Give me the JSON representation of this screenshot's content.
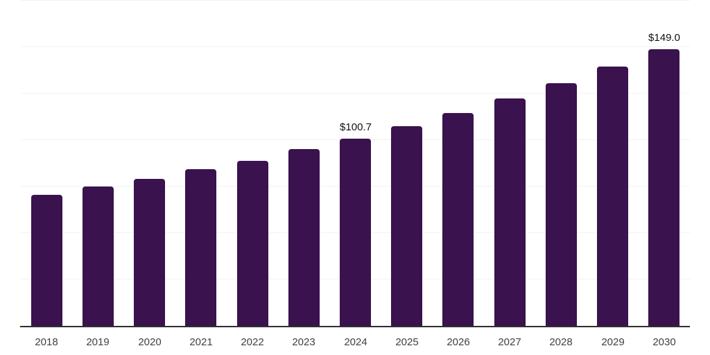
{
  "chart_data": {
    "type": "bar",
    "title": "",
    "xlabel": "",
    "ylabel": "",
    "categories": [
      "2018",
      "2019",
      "2020",
      "2021",
      "2022",
      "2023",
      "2024",
      "2025",
      "2026",
      "2027",
      "2028",
      "2029",
      "2030"
    ],
    "values": [
      70.5,
      74.9,
      79.1,
      84.2,
      88.8,
      95.0,
      100.7,
      107.5,
      114.7,
      122.4,
      130.7,
      139.5,
      149.0
    ],
    "data_labels": [
      "",
      "",
      "",
      "",
      "",
      "",
      "$100.7",
      "",
      "",
      "",
      "",
      "",
      "$149.0"
    ],
    "ylim": [
      0,
      175
    ],
    "grid_step": 25,
    "grid": "horizontal",
    "y_axis_labels_visible": false,
    "legend_position": "none",
    "colors": {
      "bar": "#39124E",
      "gridline": "#F3F3F3",
      "axis_line": "#2E2E2E",
      "tick_label": "#3F3F3F",
      "data_label": "#111111",
      "background": "#FFFFFF"
    }
  }
}
